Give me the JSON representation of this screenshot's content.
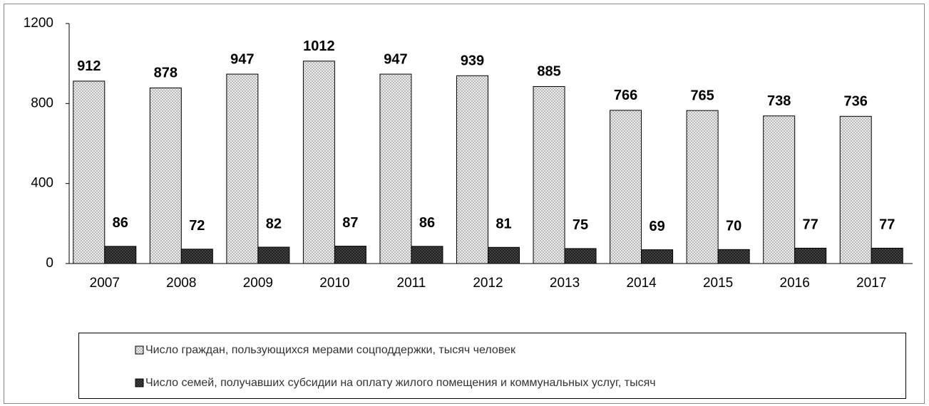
{
  "chart_data": {
    "type": "bar",
    "categories": [
      "2007",
      "2008",
      "2009",
      "2010",
      "2011",
      "2012",
      "2013",
      "2014",
      "2015",
      "2016",
      "2017"
    ],
    "series": [
      {
        "name": "Число граждан, пользующихся мерами соцподдержки, тысяч человек",
        "color": "#e6e6e6",
        "values": [
          912,
          878,
          947,
          1012,
          947,
          939,
          885,
          766,
          765,
          738,
          736
        ]
      },
      {
        "name": "Число семей, получавших субсидии на оплату жилого помещения и коммунальных  услуг, тысяч",
        "color": "#1e1e1e",
        "values": [
          86,
          72,
          82,
          87,
          86,
          81,
          75,
          69,
          70,
          77,
          77
        ]
      }
    ],
    "ylim": [
      0,
      1200
    ],
    "yticks": [
      0,
      400,
      800,
      1200
    ],
    "grid": false,
    "legend": "bottom"
  }
}
